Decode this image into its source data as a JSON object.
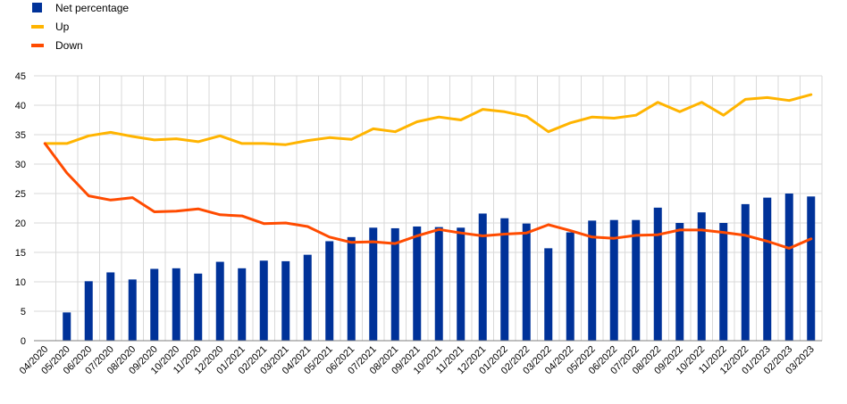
{
  "colors": {
    "bars": "#003299",
    "up": "#FFB400",
    "down": "#FF4B00",
    "grid": "#d9d9d9",
    "axis": "#7f7f7f"
  },
  "chart_data": {
    "type": "bar",
    "categories": [
      "04/2020",
      "05/2020",
      "06/2020",
      "07/2020",
      "08/2020",
      "09/2020",
      "10/2020",
      "11/2020",
      "12/2020",
      "01/2021",
      "02/2021",
      "03/2021",
      "04/2021",
      "05/2021",
      "06/2021",
      "07/2021",
      "08/2021",
      "09/2021",
      "10/2021",
      "11/2021",
      "12/2021",
      "01/2022",
      "02/2022",
      "03/2022",
      "04/2022",
      "05/2022",
      "06/2022",
      "07/2022",
      "08/2022",
      "09/2022",
      "10/2022",
      "11/2022",
      "12/2022",
      "01/2023",
      "02/2023",
      "03/2023"
    ],
    "series": [
      {
        "name": "Net percentage",
        "kind": "bar",
        "values": [
          null,
          4.8,
          10.1,
          11.6,
          10.4,
          12.2,
          12.3,
          11.4,
          13.4,
          12.3,
          13.6,
          13.5,
          14.6,
          16.9,
          17.6,
          19.2,
          19.1,
          19.4,
          19.3,
          19.2,
          21.6,
          20.8,
          19.9,
          15.7,
          18.4,
          20.4,
          20.5,
          20.5,
          22.6,
          20.0,
          21.8,
          20.0,
          23.2,
          24.3,
          25.0,
          24.5
        ]
      },
      {
        "name": "Up",
        "kind": "line",
        "values": [
          33.5,
          33.5,
          34.8,
          35.4,
          34.7,
          34.1,
          34.3,
          33.8,
          34.8,
          33.5,
          33.5,
          33.3,
          34.0,
          34.5,
          34.2,
          36.0,
          35.5,
          37.2,
          38.0,
          37.5,
          39.3,
          38.9,
          38.1,
          35.5,
          37.0,
          38.0,
          37.8,
          38.3,
          40.5,
          38.9,
          40.5,
          38.3,
          41.0,
          41.3,
          40.8,
          41.8
        ]
      },
      {
        "name": "Down",
        "kind": "line",
        "values": [
          33.5,
          28.5,
          24.6,
          23.9,
          24.3,
          21.9,
          22.0,
          22.4,
          21.4,
          21.2,
          19.9,
          20.0,
          19.4,
          17.6,
          16.7,
          16.8,
          16.5,
          17.8,
          18.9,
          18.3,
          17.8,
          18.1,
          18.3,
          19.7,
          18.7,
          17.6,
          17.4,
          17.9,
          18.0,
          18.8,
          18.8,
          18.4,
          17.9,
          16.9,
          15.7,
          17.3
        ]
      }
    ],
    "yticks": [
      "0",
      "5",
      "10",
      "15",
      "20",
      "25",
      "30",
      "35",
      "40",
      "45"
    ],
    "ylim": [
      0,
      45
    ],
    "grid": true,
    "legend_position": "top-left"
  }
}
